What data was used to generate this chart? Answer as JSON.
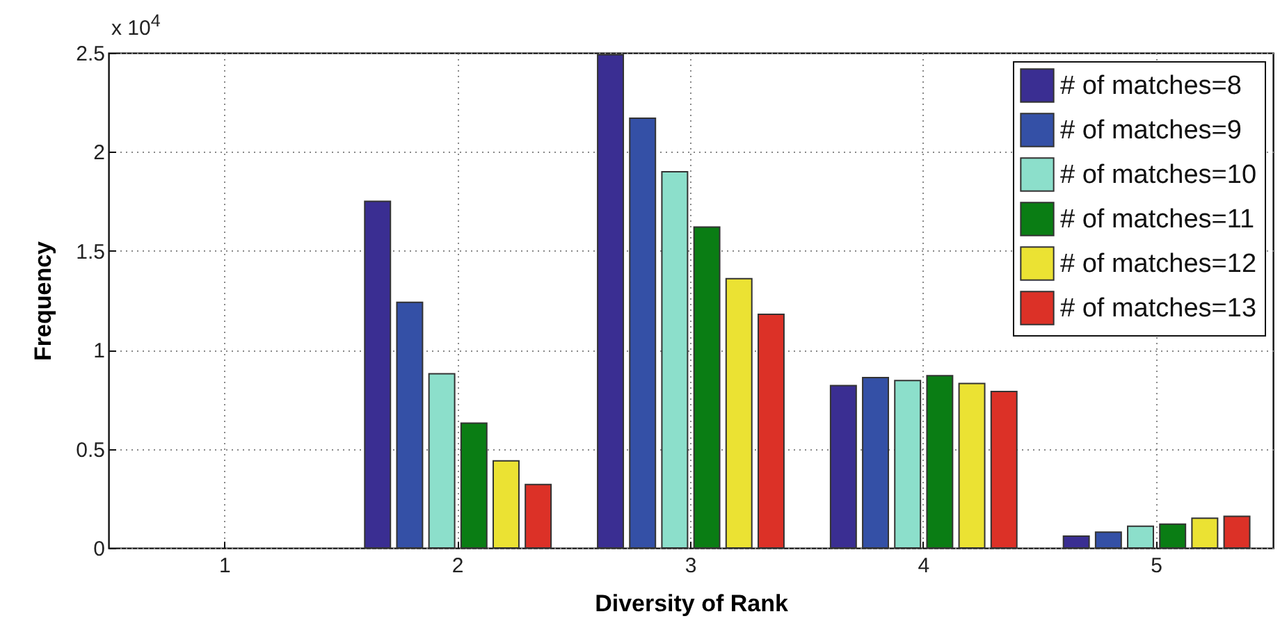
{
  "chart_data": {
    "type": "bar",
    "xlabel": "Diversity of Rank",
    "ylabel": "Frequency",
    "annotations": [
      "x 10$^{4}$"
    ],
    "categories": [
      "1",
      "2",
      "3",
      "4",
      "5"
    ],
    "series": [
      {
        "name": "# of matches=8",
        "color": "#3a2e92",
        "values": [
          0,
          1.75,
          2.49,
          0.82,
          0.06
        ]
      },
      {
        "name": "# of matches=9",
        "color": "#3450a6",
        "values": [
          0,
          1.24,
          2.17,
          0.86,
          0.08
        ]
      },
      {
        "name": "# of matches=10",
        "color": "#8cdfcb",
        "values": [
          0,
          0.88,
          1.9,
          0.845,
          0.11
        ]
      },
      {
        "name": "# of matches=11",
        "color": "#0a7d14",
        "values": [
          0,
          0.63,
          1.62,
          0.87,
          0.12
        ]
      },
      {
        "name": "# of matches=12",
        "color": "#ebe233",
        "values": [
          0,
          0.44,
          1.36,
          0.83,
          0.15
        ]
      },
      {
        "name": "# of matches=13",
        "color": "#dc3127",
        "values": [
          0,
          0.32,
          1.18,
          0.79,
          0.16
        ]
      }
    ],
    "ylim": [
      0,
      2.5
    ],
    "yticks": [
      0,
      0.5,
      1,
      1.5,
      2,
      2.5
    ],
    "grid": true,
    "legend": "top right"
  }
}
